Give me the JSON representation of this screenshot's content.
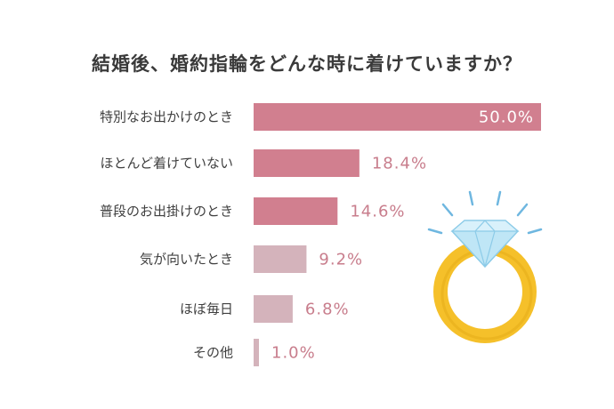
{
  "chart_data": {
    "type": "bar",
    "orientation": "horizontal",
    "title": "結婚後、婚約指輪をどんな時に着けていますか？",
    "categories": [
      "特別なお出かけのとき",
      "ほとんど着けていない",
      "普段のお出掛けのとき",
      "気が向いたとき",
      "ほぼ毎日",
      "その他"
    ],
    "values": [
      50.0,
      18.4,
      14.6,
      9.2,
      6.8,
      1.0
    ],
    "value_labels": [
      "50.0%",
      "18.4%",
      "14.6%",
      "9.2%",
      "6.8%",
      "1.0%"
    ],
    "unit": "%",
    "xlim": [
      0,
      50
    ],
    "grid": false,
    "colors": {
      "top_bars": "#d17f8f",
      "other_bars": "#d4b3bb",
      "label_inside": "#ffffff",
      "label_outside": "#c87d8c"
    }
  },
  "decoration": {
    "ring_icon": "diamond-ring-icon",
    "ring_color": "#f5c02a",
    "diamond_color": "#bfe6f6"
  }
}
